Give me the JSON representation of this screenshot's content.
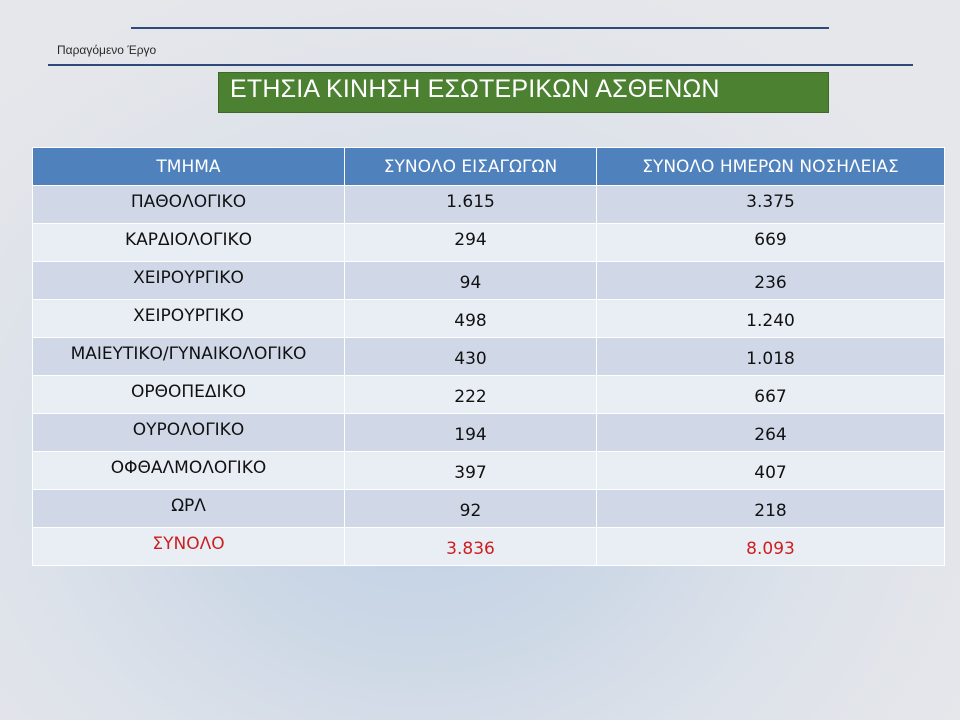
{
  "header": {
    "subtitle": "Παραγόμενο Έργο",
    "title": "ΕΤΗΣΙΑ ΚΙΝΗΣΗ ΕΣΩΤΕΡΙΚΩΝ ΑΣΘΕΝΩΝ"
  },
  "colors": {
    "title_background": "#4c8132",
    "table_header": "#4f81bd",
    "row_band_dark": "#d0d8e8",
    "row_band_light": "#e9edf4",
    "total_text": "#cc1f1f"
  },
  "table": {
    "columns": [
      "ΤΜΗΜΑ",
      "ΣΥΝΟΛΟ ΕΙΣΑΓΩΓΩΝ",
      "ΣΥΝΟΛΟ ΗΜΕΡΩΝ ΝΟΣΗΛΕΙΑΣ"
    ],
    "rows": [
      {
        "dept": "ΠΑΘΟΛΟΓΙΚΟ",
        "admissions": "1.615",
        "days": "3.375"
      },
      {
        "dept": "ΚΑΡΔΙΟΛΟΓΙΚΟ",
        "admissions": "294",
        "days": "669"
      },
      {
        "dept": "ΧΕΙΡΟΥΡΓΙΚΟ",
        "admissions": "94",
        "days": "236"
      },
      {
        "dept": "ΧΕΙΡΟΥΡΓΙΚΟ",
        "admissions": "498",
        "days": "1.240"
      },
      {
        "dept": "ΜΑΙΕΥΤΙΚΟ/ΓΥΝΑΙΚΟΛΟΓΙΚΟ",
        "admissions": "430",
        "days": "1.018"
      },
      {
        "dept": "ΟΡΘΟΠΕΔΙΚΟ",
        "admissions": "222",
        "days": "667"
      },
      {
        "dept": "ΟΥΡΟΛΟΓΙΚΟ",
        "admissions": "194",
        "days": "264"
      },
      {
        "dept": "ΟΦΘΑΛΜΟΛΟΓΙΚΟ",
        "admissions": "397",
        "days": "407"
      },
      {
        "dept": "ΩΡΛ",
        "admissions": "92",
        "days": "218"
      }
    ],
    "total": {
      "label": "ΣΥΝΟΛΟ",
      "admissions": "3.836",
      "days": "8.093"
    }
  }
}
